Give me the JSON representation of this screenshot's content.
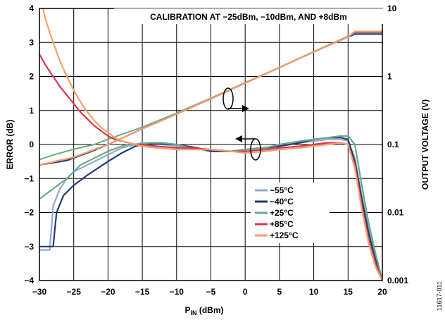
{
  "chart_data": {
    "type": "line",
    "annotation": "CALIBRATION AT −25dBm, −10dBm, AND +8dBm",
    "xlabel_main": "P",
    "xlabel_sub": "IN",
    "xlabel_unit": " (dBm)",
    "ylabel_left": "ERROR (dB)",
    "ylabel_right": "OUTPUT VOLTAGE (V)",
    "figure_id": "11617-011",
    "xlim": [
      -30,
      20
    ],
    "ylim_left": [
      -4,
      4
    ],
    "ylim_right": [
      0.001,
      10
    ],
    "y_right_scale": "log",
    "grid": true,
    "legend_placement": "lower-center-right",
    "x_ticks": [
      "−30",
      "−25",
      "−20",
      "−15",
      "−10",
      "−5",
      "0",
      "5",
      "10",
      "15",
      "20"
    ],
    "y_left_ticks": [
      "−4",
      "−3",
      "−2",
      "−1",
      "0",
      "1",
      "2",
      "3",
      "4"
    ],
    "y_right_ticks": [
      "0.001",
      "0.01",
      "0.1",
      "1",
      "10"
    ],
    "series": [
      {
        "name": "−55°C",
        "color": "#94abc6",
        "error": [
          [
            -30,
            -3.1
          ],
          [
            -28.5,
            -3.1
          ],
          [
            -28,
            -1.8
          ],
          [
            -27,
            -1.3
          ],
          [
            -26,
            -1.0
          ],
          [
            -25,
            -0.8
          ],
          [
            -24,
            -0.7
          ],
          [
            -22,
            -0.5
          ],
          [
            -20,
            -0.3
          ],
          [
            -18,
            -0.1
          ],
          [
            -16,
            0.0
          ],
          [
            -15,
            0.05
          ],
          [
            -14,
            0.05
          ],
          [
            -12,
            0.0
          ],
          [
            -10,
            -0.05
          ],
          [
            -8,
            -0.1
          ],
          [
            -5,
            -0.2
          ],
          [
            -2,
            -0.2
          ],
          [
            0,
            -0.15
          ],
          [
            2,
            -0.1
          ],
          [
            5,
            -0.05
          ],
          [
            8,
            0.05
          ],
          [
            10,
            0.1
          ],
          [
            12,
            0.15
          ],
          [
            14,
            0.15
          ],
          [
            15,
            0.1
          ],
          [
            16,
            -0.4
          ],
          [
            17,
            -1.5
          ],
          [
            18,
            -2.5
          ],
          [
            19,
            -3.3
          ],
          [
            20,
            -4.0
          ]
        ],
        "voltage": [
          [
            -30,
            0.05
          ],
          [
            -28,
            0.055
          ],
          [
            -26,
            0.06
          ],
          [
            -24,
            0.07
          ],
          [
            -22,
            0.085
          ],
          [
            -20,
            0.1
          ],
          [
            -15,
            0.17
          ],
          [
            -10,
            0.28
          ],
          [
            -5,
            0.47
          ],
          [
            0,
            0.8
          ],
          [
            5,
            1.35
          ],
          [
            10,
            2.3
          ],
          [
            15,
            3.8
          ],
          [
            16,
            4.3
          ],
          [
            20,
            4.3
          ]
        ]
      },
      {
        "name": "−40°C",
        "color": "#1f3a7a",
        "error": [
          [
            -30,
            -3.0
          ],
          [
            -28,
            -3.0
          ],
          [
            -27.5,
            -2.0
          ],
          [
            -26.5,
            -1.5
          ],
          [
            -25,
            -1.2
          ],
          [
            -23,
            -0.9
          ],
          [
            -20,
            -0.5
          ],
          [
            -18,
            -0.25
          ],
          [
            -16,
            -0.05
          ],
          [
            -15,
            0.0
          ],
          [
            -13,
            0.02
          ],
          [
            -10,
            0.0
          ],
          [
            -7,
            -0.1
          ],
          [
            -5,
            -0.2
          ],
          [
            -2,
            -0.2
          ],
          [
            0,
            -0.15
          ],
          [
            3,
            -0.1
          ],
          [
            5,
            -0.05
          ],
          [
            8,
            0.05
          ],
          [
            10,
            0.15
          ],
          [
            12,
            0.2
          ],
          [
            14,
            0.2
          ],
          [
            15,
            0.15
          ],
          [
            16,
            -0.5
          ],
          [
            17,
            -1.6
          ],
          [
            18,
            -2.6
          ],
          [
            19,
            -3.4
          ],
          [
            20,
            -4.0
          ]
        ],
        "voltage": [
          [
            -30,
            0.05
          ],
          [
            -26,
            0.058
          ],
          [
            -22,
            0.082
          ],
          [
            -20,
            0.1
          ],
          [
            -15,
            0.17
          ],
          [
            -10,
            0.28
          ],
          [
            -5,
            0.47
          ],
          [
            0,
            0.8
          ],
          [
            5,
            1.35
          ],
          [
            10,
            2.3
          ],
          [
            15,
            3.8
          ],
          [
            16,
            4.2
          ],
          [
            20,
            4.2
          ]
        ]
      },
      {
        "name": "+25°C",
        "color": "#6aa989",
        "error": [
          [
            -30,
            -1.6
          ],
          [
            -28,
            -1.3
          ],
          [
            -26,
            -1.0
          ],
          [
            -25,
            -0.8
          ],
          [
            -24,
            -0.6
          ],
          [
            -22,
            -0.4
          ],
          [
            -20,
            -0.2
          ],
          [
            -18,
            -0.05
          ],
          [
            -17,
            0.0
          ],
          [
            -15,
            0.0
          ],
          [
            -14,
            0.05
          ],
          [
            -12,
            0.05
          ],
          [
            -10,
            0.0
          ],
          [
            -8,
            -0.1
          ],
          [
            -5,
            -0.15
          ],
          [
            -2,
            -0.2
          ],
          [
            0,
            -0.15
          ],
          [
            3,
            -0.1
          ],
          [
            5,
            0.0
          ],
          [
            8,
            0.1
          ],
          [
            10,
            0.15
          ],
          [
            12,
            0.2
          ],
          [
            14,
            0.25
          ],
          [
            15,
            0.25
          ],
          [
            16,
            0.0
          ],
          [
            17,
            -1.2
          ],
          [
            18,
            -2.3
          ],
          [
            19,
            -3.2
          ],
          [
            20,
            -4.0
          ]
        ],
        "voltage": [
          [
            -30,
            0.06
          ],
          [
            -28,
            0.07
          ],
          [
            -26,
            0.08
          ],
          [
            -24,
            0.09
          ],
          [
            -22,
            0.1
          ],
          [
            -20,
            0.12
          ],
          [
            -15,
            0.18
          ],
          [
            -10,
            0.29
          ],
          [
            -5,
            0.48
          ],
          [
            0,
            0.81
          ],
          [
            5,
            1.36
          ],
          [
            10,
            2.32
          ],
          [
            15,
            3.9
          ],
          [
            16,
            4.4
          ],
          [
            20,
            4.4
          ]
        ]
      },
      {
        "name": "+85°C",
        "color": "#d6374e",
        "error": [
          [
            -30,
            2.65
          ],
          [
            -29,
            2.3
          ],
          [
            -28,
            2.0
          ],
          [
            -27,
            1.7
          ],
          [
            -26,
            1.45
          ],
          [
            -25,
            1.2
          ],
          [
            -24,
            0.95
          ],
          [
            -23,
            0.75
          ],
          [
            -22,
            0.55
          ],
          [
            -21,
            0.4
          ],
          [
            -20,
            0.25
          ],
          [
            -19,
            0.15
          ],
          [
            -18,
            0.1
          ],
          [
            -17,
            0.05
          ],
          [
            -16,
            0.0
          ],
          [
            -15,
            0.0
          ],
          [
            -13,
            -0.05
          ],
          [
            -10,
            -0.1
          ],
          [
            -8,
            -0.1
          ],
          [
            -5,
            -0.15
          ],
          [
            -2,
            -0.2
          ],
          [
            0,
            -0.2
          ],
          [
            3,
            -0.15
          ],
          [
            5,
            -0.1
          ],
          [
            8,
            -0.05
          ],
          [
            10,
            0.0
          ],
          [
            12,
            0.05
          ],
          [
            14,
            0.05
          ],
          [
            15,
            0.0
          ],
          [
            16,
            -0.6
          ],
          [
            17,
            -1.8
          ],
          [
            18,
            -2.8
          ],
          [
            19,
            -3.5
          ],
          [
            20,
            -4.0
          ]
        ],
        "voltage": [
          [
            -30,
            0.05
          ],
          [
            -25,
            0.065
          ],
          [
            -20,
            0.1
          ],
          [
            -15,
            0.17
          ],
          [
            -10,
            0.28
          ],
          [
            -5,
            0.47
          ],
          [
            0,
            0.8
          ],
          [
            5,
            1.35
          ],
          [
            10,
            2.3
          ],
          [
            15,
            3.8
          ],
          [
            16,
            4.5
          ],
          [
            20,
            4.5
          ]
        ]
      },
      {
        "name": "+125°C",
        "color": "#f6a06b",
        "error": [
          [
            -29.5,
            4.0
          ],
          [
            -29,
            3.6
          ],
          [
            -28,
            3.0
          ],
          [
            -27,
            2.45
          ],
          [
            -26,
            2.0
          ],
          [
            -25,
            1.6
          ],
          [
            -24,
            1.25
          ],
          [
            -23,
            0.95
          ],
          [
            -22,
            0.7
          ],
          [
            -21,
            0.5
          ],
          [
            -20,
            0.35
          ],
          [
            -19,
            0.2
          ],
          [
            -18,
            0.1
          ],
          [
            -17,
            0.05
          ],
          [
            -16,
            0.0
          ],
          [
            -15,
            -0.05
          ],
          [
            -13,
            -0.1
          ],
          [
            -10,
            -0.15
          ],
          [
            -8,
            -0.15
          ],
          [
            -5,
            -0.15
          ],
          [
            -2,
            -0.2
          ],
          [
            0,
            -0.25
          ],
          [
            3,
            -0.2
          ],
          [
            5,
            -0.15
          ],
          [
            8,
            -0.1
          ],
          [
            10,
            -0.05
          ],
          [
            12,
            0.0
          ],
          [
            14,
            0.05
          ],
          [
            15,
            0.0
          ],
          [
            16,
            -0.7
          ],
          [
            17,
            -1.9
          ],
          [
            18,
            -2.9
          ],
          [
            19,
            -3.6
          ],
          [
            20,
            -4.0
          ]
        ],
        "voltage": [
          [
            -30,
            0.05
          ],
          [
            -25,
            0.065
          ],
          [
            -20,
            0.1
          ],
          [
            -15,
            0.17
          ],
          [
            -10,
            0.28
          ],
          [
            -5,
            0.47
          ],
          [
            0,
            0.8
          ],
          [
            5,
            1.35
          ],
          [
            10,
            2.3
          ],
          [
            15,
            3.8
          ],
          [
            16,
            4.6
          ],
          [
            20,
            4.6
          ]
        ]
      }
    ]
  }
}
